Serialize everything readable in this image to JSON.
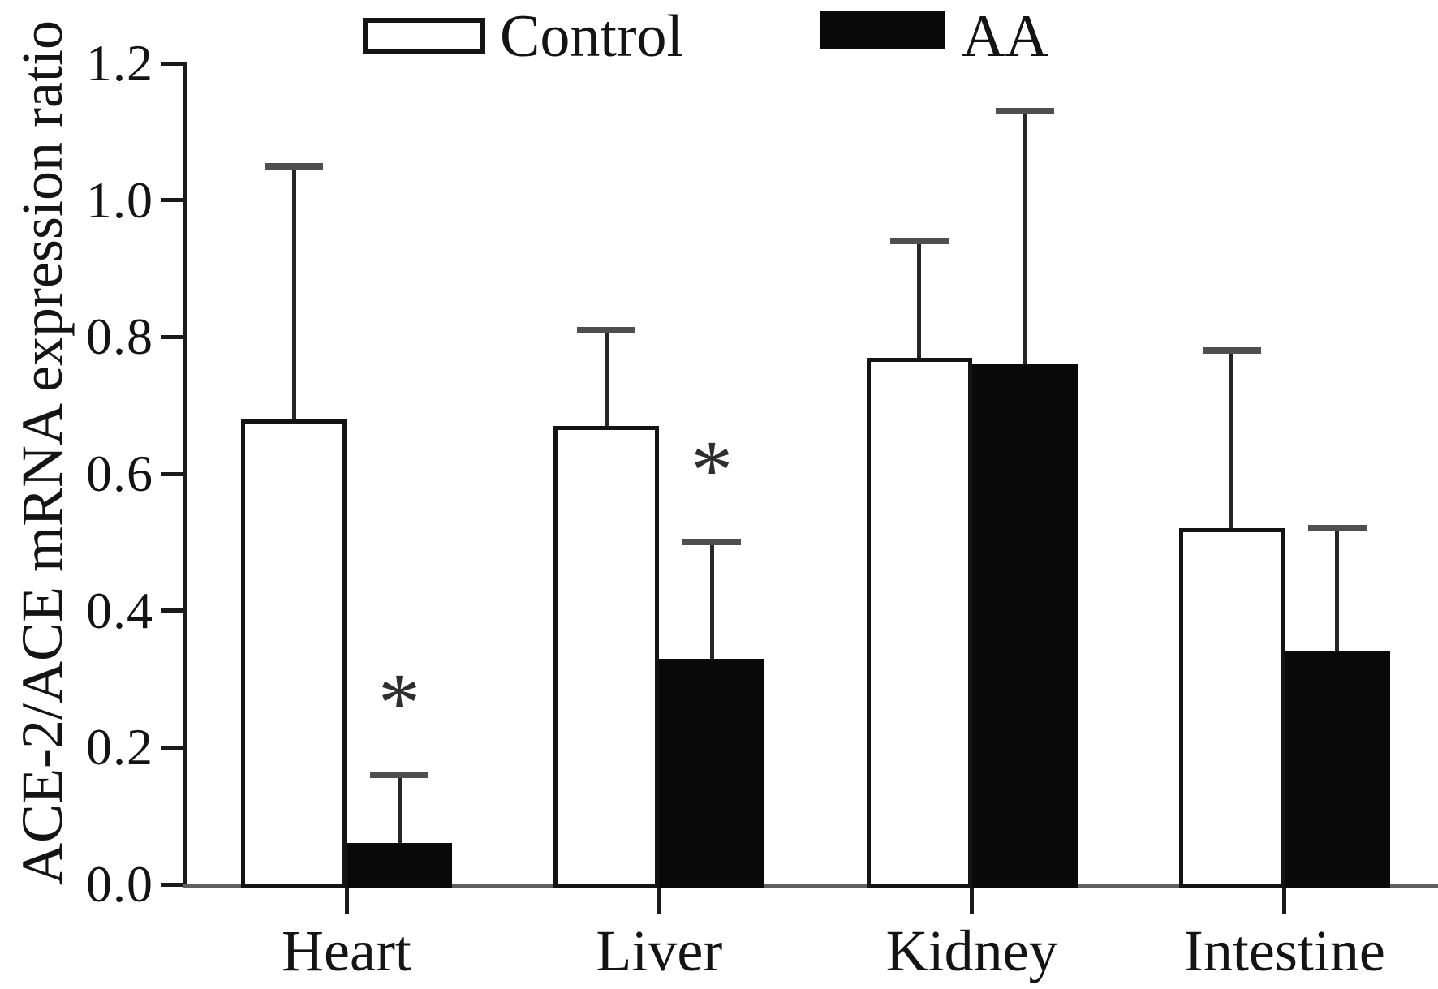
{
  "figure": {
    "y_axis_label": "ACE-2/ACE mRNA expression ratio",
    "legend": {
      "control_label": "Control",
      "aa_label": "AA",
      "control_fill": "#ffffff",
      "aa_fill": "#000000"
    },
    "significance_symbol": "*"
  },
  "chart_data": {
    "type": "bar",
    "title": "",
    "xlabel": "",
    "ylabel": "ACE-2/ACE mRNA expression ratio",
    "categories": [
      "Heart",
      "Liver",
      "Kidney",
      "Intestine"
    ],
    "series": [
      {
        "name": "Control",
        "fill": "#ffffff",
        "values": [
          0.68,
          0.67,
          0.77,
          0.52
        ],
        "error_plus": [
          0.37,
          0.14,
          0.17,
          0.26
        ],
        "significance": [
          "",
          "",
          "",
          ""
        ]
      },
      {
        "name": "AA",
        "fill": "#000000",
        "values": [
          0.06,
          0.33,
          0.76,
          0.34
        ],
        "error_plus": [
          0.1,
          0.17,
          0.37,
          0.18
        ],
        "significance": [
          "*",
          "*",
          "",
          ""
        ]
      }
    ],
    "y_ticks": [
      0.0,
      0.2,
      0.4,
      0.6,
      0.8,
      1.0,
      1.2
    ],
    "y_tick_labels": [
      "0.0",
      "0.2",
      "0.4",
      "0.6",
      "0.8",
      "1.0",
      "1.2"
    ],
    "ylim": [
      0,
      1.2
    ],
    "error_bars": "upper_only",
    "grid": false,
    "legend_position": "top"
  }
}
